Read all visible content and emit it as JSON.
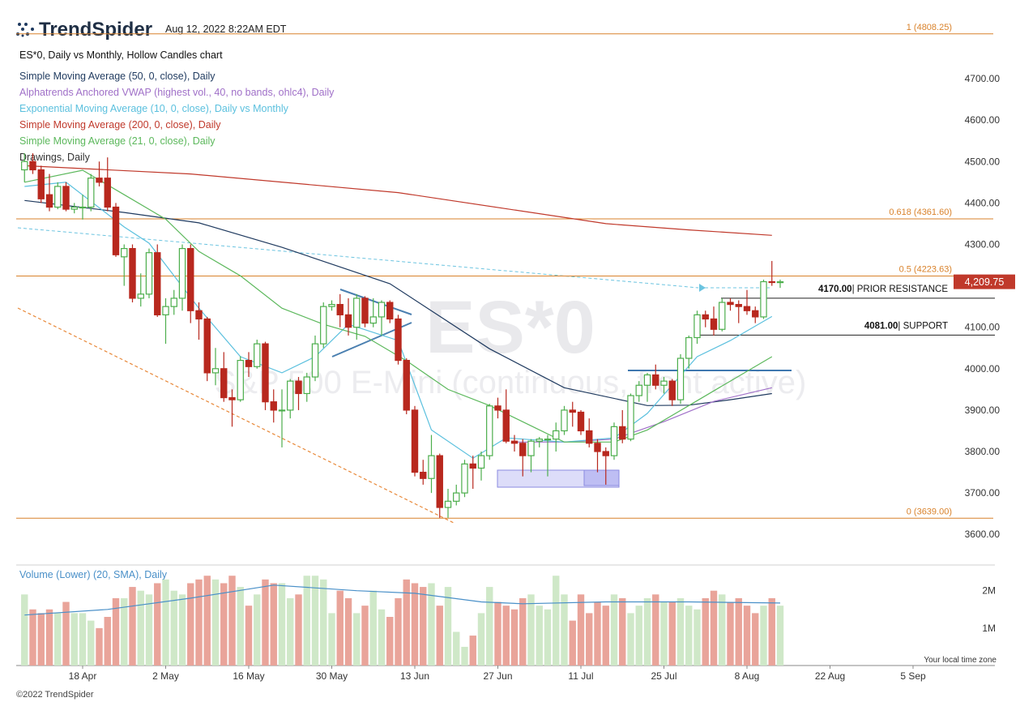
{
  "header": {
    "brand": "TrendSpider",
    "timestamp": "Aug 12, 2022 8:22AM EDT",
    "copyright": "©2022 TrendSpider",
    "timezone_note": "Your local time zone"
  },
  "chart_data": {
    "type": "candlestick",
    "description": "ES*0, Daily vs Monthly, Hollow Candles chart",
    "watermark": "ES*0",
    "watermark_subtitle": "S&P 500 E-Mini (continuous, front active)",
    "drawings_label": "Drawings, Daily",
    "up_color": "#4cae4c",
    "down_color": "#b8281e",
    "volume_up_color": "#cfe8c8",
    "volume_down_color": "#e9a49a",
    "fib_color": "#d9822b",
    "categories": [
      null,
      null,
      null,
      null,
      null,
      null,
      null,
      "18 Apr",
      null,
      null,
      null,
      null,
      null,
      null,
      null,
      null,
      null,
      "2 May",
      null,
      null,
      null,
      null,
      null,
      null,
      null,
      null,
      null,
      "16 May",
      null,
      null,
      null,
      null,
      null,
      null,
      null,
      null,
      null,
      "30 May",
      null,
      null,
      null,
      null,
      null,
      null,
      null,
      null,
      null,
      "13 Jun",
      null,
      null,
      null,
      null,
      null,
      null,
      null,
      null,
      null,
      "27 Jun",
      null,
      null,
      null,
      null,
      null,
      null,
      null,
      null,
      null,
      "11 Jul",
      null,
      null,
      null,
      null,
      null,
      null,
      null,
      null,
      null,
      "25 Jul",
      null,
      null,
      null,
      null,
      null,
      null,
      null,
      null,
      null,
      "8 Aug",
      null,
      null,
      null,
      null,
      null,
      null,
      null,
      null,
      null,
      "22 Aug",
      null,
      null,
      null,
      null,
      null,
      null,
      null,
      null,
      null,
      "5 Sep"
    ],
    "open": [
      4480,
      4500,
      4480,
      4420,
      4390,
      4440,
      4385,
      4390,
      4390,
      4460,
      4460,
      4390,
      4270,
      4290,
      4170,
      4180,
      4280,
      4130,
      4150,
      4170,
      4290,
      4140,
      4120,
      3990,
      4000,
      3930,
      3925,
      4020,
      4005,
      4060,
      3920,
      3900,
      3900,
      3970,
      3940,
      3980,
      4060,
      4150,
      4155,
      4130,
      4100,
      4170,
      4110,
      4125,
      4160,
      4120,
      4020,
      3900,
      3750,
      3735,
      3790,
      3665,
      3680,
      3700,
      3770,
      3760,
      3790,
      3910,
      3900,
      3825,
      3820,
      3790,
      3825,
      3830,
      3830,
      3850,
      3900,
      3895,
      3850,
      3820,
      3800,
      3790,
      3860,
      3830,
      3935,
      3960,
      3985,
      3960,
      3970,
      3925,
      4025,
      4075,
      4130,
      4120,
      4095,
      4160,
      4155,
      4150,
      4140,
      4125,
      4210,
      4208,
      null,
      null,
      null,
      null,
      null,
      null,
      null,
      null,
      null,
      null,
      null,
      null,
      null,
      null,
      null,
      null
    ],
    "high": [
      4520,
      4520,
      4490,
      4470,
      4450,
      4450,
      4400,
      4420,
      4470,
      4500,
      4510,
      4400,
      4300,
      4300,
      4230,
      4290,
      4300,
      4170,
      4190,
      4300,
      4300,
      4160,
      4125,
      4050,
      4040,
      3950,
      4030,
      4040,
      4070,
      4065,
      3950,
      3950,
      3975,
      3980,
      3990,
      4080,
      4160,
      4165,
      4180,
      4170,
      4180,
      4175,
      4170,
      4165,
      4165,
      4130,
      4025,
      3910,
      3780,
      3840,
      3795,
      3710,
      3720,
      3780,
      3790,
      3800,
      3915,
      3930,
      3950,
      3840,
      3830,
      3830,
      3835,
      3840,
      3870,
      3910,
      3920,
      3900,
      3880,
      3830,
      3810,
      3870,
      3900,
      3940,
      3970,
      3990,
      4010,
      3980,
      3975,
      4035,
      4080,
      4140,
      4140,
      4150,
      4170,
      4170,
      4165,
      4190,
      4150,
      4215,
      4260,
      4215,
      null,
      null,
      null,
      null,
      null,
      null,
      null,
      null,
      null,
      null,
      null,
      null,
      null,
      null,
      null,
      null
    ],
    "low": [
      4450,
      4470,
      4400,
      4380,
      4385,
      4380,
      4375,
      4360,
      4380,
      4440,
      4380,
      4270,
      4200,
      4160,
      4150,
      4170,
      4125,
      4060,
      4130,
      4140,
      4110,
      4070,
      3970,
      3960,
      3920,
      3860,
      3920,
      3980,
      4000,
      3900,
      3870,
      3810,
      3880,
      3900,
      3920,
      3970,
      4050,
      4140,
      4100,
      4080,
      4070,
      4100,
      4100,
      4080,
      4110,
      4010,
      3890,
      3740,
      3720,
      3700,
      3640,
      3640,
      3670,
      3690,
      3710,
      3730,
      3780,
      3880,
      3820,
      3800,
      3740,
      3750,
      3810,
      3740,
      3800,
      3840,
      3860,
      3840,
      3810,
      3750,
      3720,
      3780,
      3820,
      3825,
      3920,
      3920,
      3950,
      3940,
      3910,
      3915,
      4000,
      4060,
      4100,
      4080,
      4090,
      4140,
      4110,
      4130,
      4110,
      4120,
      4200,
      4195,
      null,
      null,
      null,
      null,
      null,
      null,
      null,
      null,
      null,
      null,
      null,
      null,
      null,
      null,
      null,
      null
    ],
    "close": [
      4500,
      4480,
      4410,
      4390,
      4440,
      4385,
      4390,
      4390,
      4460,
      4450,
      4390,
      4275,
      4290,
      4170,
      4180,
      4280,
      4130,
      4150,
      4170,
      4290,
      4140,
      4120,
      3990,
      4000,
      3930,
      3925,
      4020,
      4005,
      4060,
      3920,
      3900,
      3900,
      3970,
      3940,
      3980,
      4060,
      4150,
      4155,
      4130,
      4100,
      4170,
      4110,
      4125,
      4160,
      4120,
      4020,
      3900,
      3750,
      3735,
      3790,
      3665,
      3680,
      3700,
      3770,
      3760,
      3790,
      3910,
      3900,
      3825,
      3820,
      3790,
      3825,
      3830,
      3830,
      3850,
      3900,
      3895,
      3850,
      3820,
      3800,
      3790,
      3860,
      3830,
      3935,
      3960,
      3985,
      3960,
      3970,
      3925,
      4025,
      4075,
      4130,
      4120,
      4095,
      4160,
      4155,
      4150,
      4140,
      4125,
      4210,
      4208,
      4209.75,
      null,
      null,
      null,
      null,
      null,
      null,
      null,
      null,
      null,
      null,
      null,
      null,
      null,
      null,
      null,
      null
    ],
    "ylim": [
      3530,
      4843
    ],
    "yticks": [
      {
        "value": 3600,
        "label": "3600.00"
      },
      {
        "value": 3700,
        "label": "3700.00"
      },
      {
        "value": 3800,
        "label": "3800.00"
      },
      {
        "value": 3900,
        "label": "3900.00"
      },
      {
        "value": 4000,
        "label": "4000.00"
      },
      {
        "value": 4100,
        "label": "4100.00"
      },
      {
        "value": 4200,
        "label": "4200.00"
      },
      {
        "value": 4300,
        "label": "4300.00"
      },
      {
        "value": 4400,
        "label": "4400.00"
      },
      {
        "value": 4500,
        "label": "4500.00"
      },
      {
        "value": 4600,
        "label": "4600.00"
      },
      {
        "value": 4700,
        "label": "4700.00"
      }
    ],
    "last_price": {
      "value": 4209.75,
      "label": "4,209.75"
    },
    "fib_levels": [
      {
        "value": 4808.25,
        "label": "1 (4808.25)"
      },
      {
        "value": 4361.6,
        "label": "0.618 (4361.60)"
      },
      {
        "value": 4223.63,
        "label": "0.5 (4223.63)"
      },
      {
        "value": 3639,
        "label": "0 (3639.00)"
      }
    ],
    "levels": [
      {
        "value": 4170,
        "label": "4170.00",
        "note": "| PRIOR RESISTANCE"
      },
      {
        "value": 4081,
        "label": "4081.00",
        "note": "| SUPPORT"
      }
    ],
    "series": [
      {
        "name": "Simple Moving Average (50, 0, close), Daily",
        "color": "#1f3a5f",
        "x": [
          0,
          12,
          21,
          31,
          44,
          56,
          65,
          75,
          80,
          85,
          90
        ],
        "values": [
          4406,
          4377,
          4352,
          4293,
          4205,
          4048,
          3954,
          3911,
          3912,
          3925,
          3940
        ]
      },
      {
        "name": "Alphatrends Anchored VWAP (highest vol., 40, no bands, ohlc4), Daily",
        "color": "#a070c8",
        "x": [
          59,
          65,
          71,
          77,
          83,
          90
        ],
        "values": [
          3823,
          3823,
          3830,
          3872,
          3921,
          3954
        ]
      },
      {
        "name": "Exponential Moving Average (10, 0, close), Daily vs Monthly",
        "color": "#5bc0de",
        "x": [
          0,
          5,
          12,
          15,
          21,
          26,
          31,
          35,
          39,
          45,
          49,
          54,
          58,
          65,
          71,
          75,
          81,
          85,
          90
        ],
        "values": [
          4440,
          4450,
          4342,
          4303,
          4146,
          4029,
          3990,
          4029,
          4107,
          4068,
          3852,
          3784,
          3833,
          3823,
          3833,
          3892,
          4029,
          4068,
          4126
        ]
      },
      {
        "name": "Simple Moving Average (200, 0, close), Daily",
        "color": "#c0392b",
        "x": [
          0,
          20,
          45,
          70,
          80,
          90
        ],
        "values": [
          4490,
          4470,
          4425,
          4350,
          4335,
          4322
        ]
      },
      {
        "name": "Simple Moving Average (21, 0, close), Daily",
        "color": "#5cb85c",
        "x": [
          0,
          7,
          12,
          17,
          21,
          26,
          31,
          36,
          41,
          46,
          51,
          56,
          61,
          65,
          71,
          75,
          80,
          85,
          90
        ],
        "values": [
          4450,
          4479,
          4420,
          4361,
          4283,
          4224,
          4146,
          4107,
          4078,
          4019,
          3950,
          3911,
          3862,
          3823,
          3823,
          3852,
          3911,
          3970,
          4029
        ]
      }
    ],
    "volume": {
      "values": [
        1.9,
        1.5,
        1.4,
        1.5,
        1.4,
        1.7,
        1.4,
        1.4,
        1.2,
        1.0,
        1.3,
        1.8,
        1.8,
        2.1,
        2.0,
        1.9,
        2.2,
        2.3,
        2.0,
        1.9,
        2.2,
        2.3,
        2.4,
        2.3,
        2.2,
        2.4,
        2.1,
        1.6,
        1.9,
        2.3,
        2.2,
        2.2,
        1.8,
        1.9,
        2.4,
        2.4,
        2.3,
        1.4,
        2.0,
        1.8,
        1.4,
        1.6,
        2.0,
        1.5,
        1.3,
        1.8,
        2.3,
        2.2,
        2.1,
        2.2,
        1.6,
        2.1,
        0.9,
        0.5,
        0.8,
        1.4,
        2.1,
        1.7,
        1.6,
        1.5,
        1.8,
        1.9,
        1.6,
        1.5,
        2.4,
        1.9,
        1.2,
        1.9,
        1.4,
        1.7,
        1.6,
        1.9,
        1.8,
        1.4,
        1.6,
        1.8,
        1.9,
        1.7,
        1.7,
        1.8,
        1.6,
        1.5,
        1.8,
        2.0,
        1.9,
        1.7,
        1.8,
        1.6,
        1.4,
        1.6,
        1.8,
        1.6,
        null,
        null,
        null,
        null,
        null,
        null,
        null,
        null,
        null,
        null,
        null,
        null,
        null,
        null,
        null,
        null
      ],
      "ylim": [
        0,
        2.6
      ],
      "yticks": [
        {
          "value": 1,
          "label": "1M"
        },
        {
          "value": 2,
          "label": "2M"
        }
      ],
      "sma": {
        "name": "Volume (Lower) (20, SMA), Daily",
        "color": "#4a90c8",
        "x": [
          0,
          10,
          20,
          30,
          40,
          47,
          55,
          60,
          70,
          80,
          91
        ],
        "values": [
          1.35,
          1.5,
          1.8,
          2.15,
          2.0,
          1.93,
          1.7,
          1.65,
          1.7,
          1.7,
          1.67
        ]
      }
    }
  }
}
